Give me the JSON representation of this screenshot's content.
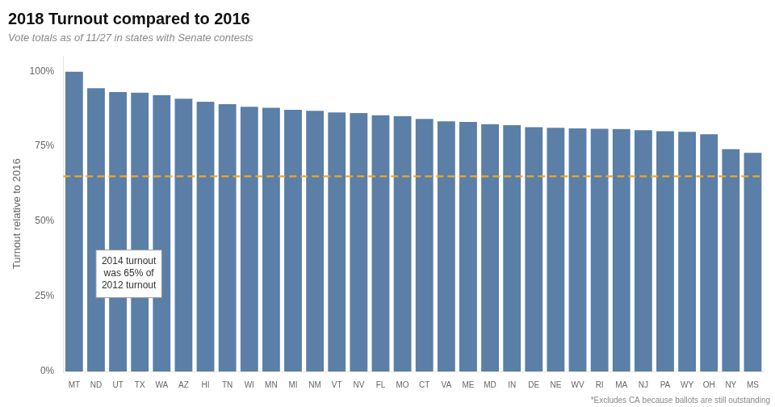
{
  "chart_data": {
    "type": "bar",
    "title": "2018 Turnout compared to 2016",
    "subtitle": "Vote totals as of 11/27 in states with Senate contests",
    "ylabel": "Turnout relative to 2016",
    "footnote": "*Excludes CA because ballots are still outstanding",
    "categories": [
      "MT",
      "ND",
      "UT",
      "TX",
      "WA",
      "AZ",
      "HI",
      "TN",
      "WI",
      "MN",
      "MI",
      "NM",
      "VT",
      "NV",
      "FL",
      "MO",
      "CT",
      "VA",
      "ME",
      "MD",
      "IN",
      "DE",
      "NE",
      "WV",
      "RI",
      "MA",
      "NJ",
      "PA",
      "WY",
      "OH",
      "NY",
      "MS"
    ],
    "values": [
      100.0,
      94.5,
      93.2,
      93.0,
      92.2,
      91.0,
      90.0,
      89.2,
      88.3,
      88.0,
      87.3,
      87.0,
      86.4,
      86.2,
      85.5,
      85.2,
      84.3,
      83.5,
      83.3,
      82.5,
      82.2,
      81.5,
      81.3,
      81.1,
      81.0,
      80.9,
      80.5,
      80.2,
      80.0,
      79.2,
      74.2,
      73.0
    ],
    "color": "#5b7fa6",
    "reference_line": {
      "y": 65.0,
      "color": "#f5a623",
      "line_style": "dashed"
    },
    "annotation": "2014 turnout\nwas 65% of\n2012 turnout",
    "ylim": [
      0,
      105
    ],
    "yticks": [
      {
        "value": 0,
        "label": "0%"
      },
      {
        "value": 25,
        "label": "25%"
      },
      {
        "value": 50,
        "label": "50%"
      },
      {
        "value": 75,
        "label": "75%"
      },
      {
        "value": 100,
        "label": "100%"
      }
    ],
    "grid": false
  }
}
